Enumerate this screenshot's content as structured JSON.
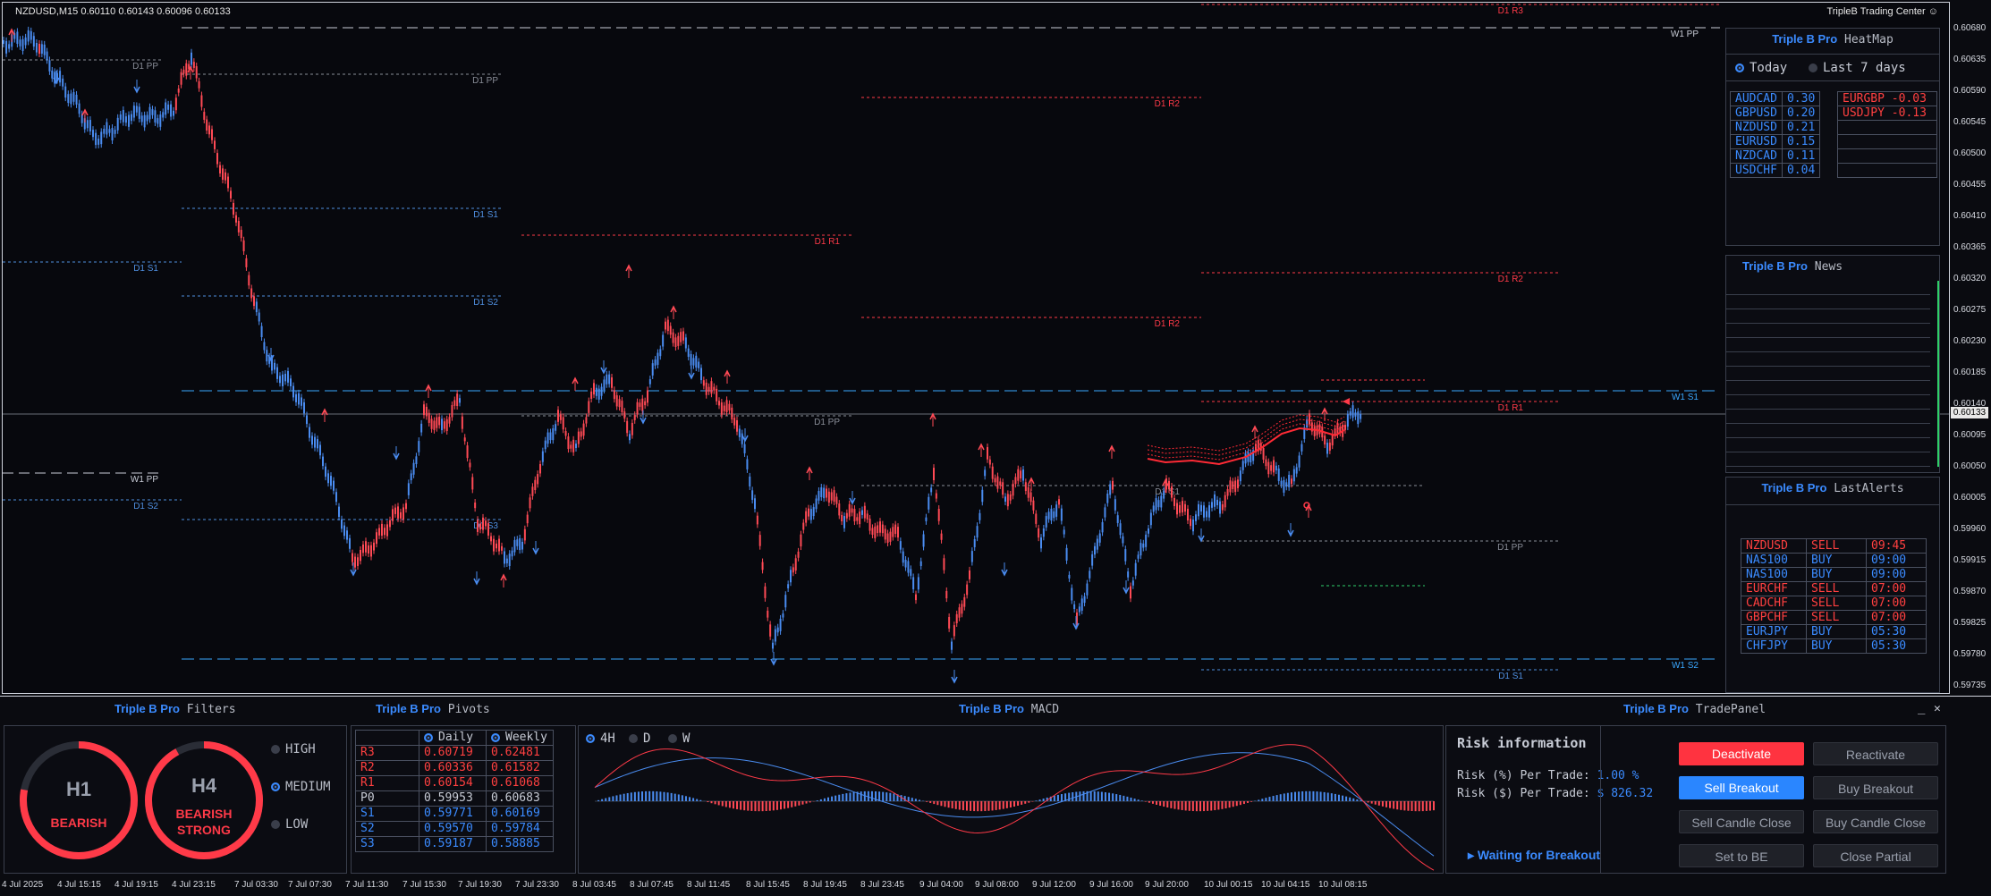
{
  "chart": {
    "symbol_line": "NZDUSD,M15  0.60110 0.60143 0.60096 0.60133",
    "trading_center": "TripleB Trading Center ☺",
    "current_price": "0.60133",
    "price_ticks": [
      "0.60680",
      "0.60635",
      "0.60590",
      "0.60545",
      "0.60500",
      "0.60455",
      "0.60410",
      "0.60365",
      "0.60320",
      "0.60275",
      "0.60230",
      "0.60185",
      "0.60140",
      "0.60095",
      "0.60050",
      "0.60005",
      "0.59960",
      "0.59915",
      "0.59870",
      "0.59825",
      "0.59780",
      "0.59735"
    ],
    "time_ticks": [
      "4 Jul 2025",
      "4 Jul 15:15",
      "4 Jul 19:15",
      "4 Jul 23:15",
      "7 Jul 03:30",
      "7 Jul 07:30",
      "7 Jul 11:30",
      "7 Jul 15:30",
      "7 Jul 19:30",
      "7 Jul 23:30",
      "8 Jul 03:45",
      "8 Jul 07:45",
      "8 Jul 11:45",
      "8 Jul 15:45",
      "8 Jul 19:45",
      "8 Jul 23:45",
      "9 Jul 04:00",
      "9 Jul 08:00",
      "9 Jul 12:00",
      "9 Jul 16:00",
      "9 Jul 20:00",
      "10 Jul 00:15",
      "10 Jul 04:15",
      "10 Jul 08:15"
    ],
    "level_labels": {
      "d1pp_a": "D1 PP",
      "d1pp_b": "D1 PP",
      "d1r3": "D1 R3",
      "w1pp": "W1 PP",
      "d1r2_a": "D1 R2",
      "d1s1_a": "D1 S1",
      "d1s1_b": "D1 S1",
      "d1r1_a": "D1 R1",
      "d1s2_a": "D1 S2",
      "d1r2_b": "D1 R2",
      "d1r1_b": "D1 R2",
      "w1s1": "W1 S1",
      "d1pp_c": "D1 PP",
      "d1r1_c": "D1 R1",
      "w1pp_b": "W1 PP",
      "d1s2_b": "D1 S2",
      "d1s3": "D1 S3",
      "d1pp_d": "D1 PP",
      "w1s2": "W1 S2",
      "d1s1_c": "D1 S1",
      "d1s_mid": "D1 S1"
    }
  },
  "heatmap": {
    "brand": "Triple B Pro",
    "title": "HeatMap",
    "opt_today": "Today",
    "opt_last7": "Last 7 days",
    "left": [
      {
        "pair": "AUDCAD",
        "val": "0.30"
      },
      {
        "pair": "GBPUSD",
        "val": "0.20"
      },
      {
        "pair": "NZDUSD",
        "val": "0.21"
      },
      {
        "pair": "EURUSD",
        "val": "0.15"
      },
      {
        "pair": "NZDCAD",
        "val": "0.11"
      },
      {
        "pair": "USDCHF",
        "val": "0.04"
      }
    ],
    "right": [
      {
        "pair": "EURGBP",
        "val": "-0.03"
      },
      {
        "pair": "USDJPY",
        "val": "-0.13"
      }
    ]
  },
  "news": {
    "brand": "Triple B Pro",
    "title": "News"
  },
  "alerts": {
    "brand": "Triple B Pro",
    "title": "LastAlerts",
    "rows": [
      {
        "pair": "NZDUSD",
        "side": "SELL",
        "time": "09:45"
      },
      {
        "pair": "NAS100",
        "side": "BUY",
        "time": "09:00"
      },
      {
        "pair": "NAS100",
        "side": "BUY",
        "time": "09:00"
      },
      {
        "pair": "EURCHF",
        "side": "SELL",
        "time": "07:00"
      },
      {
        "pair": "CADCHF",
        "side": "SELL",
        "time": "07:00"
      },
      {
        "pair": "GBPCHF",
        "side": "SELL",
        "time": "07:00"
      },
      {
        "pair": "EURJPY",
        "side": "BUY",
        "time": "05:30"
      },
      {
        "pair": "CHFJPY",
        "side": "BUY",
        "time": "05:30"
      }
    ]
  },
  "filters": {
    "brand": "Triple B Pro",
    "title": "Filters",
    "gauge1_tf": "H1",
    "gauge1_state": "BEARISH",
    "gauge2_tf": "H4",
    "gauge2_state1": "BEARISH",
    "gauge2_state2": "STRONG",
    "gauge1_level": 0.78,
    "gauge2_level": 0.92,
    "opt_high": "HIGH",
    "opt_medium": "MEDIUM",
    "opt_low": "LOW"
  },
  "pivots": {
    "brand": "Triple B Pro",
    "title": "Pivots",
    "col_daily": "Daily",
    "col_weekly": "Weekly",
    "rows": [
      {
        "name": "R3",
        "daily": "0.60719",
        "weekly": "0.62481"
      },
      {
        "name": "R2",
        "daily": "0.60336",
        "weekly": "0.61582"
      },
      {
        "name": "R1",
        "daily": "0.60154",
        "weekly": "0.61068"
      },
      {
        "name": "P0",
        "daily": "0.59953",
        "weekly": "0.60683"
      },
      {
        "name": "S1",
        "daily": "0.59771",
        "weekly": "0.60169"
      },
      {
        "name": "S2",
        "daily": "0.59570",
        "weekly": "0.59784"
      },
      {
        "name": "S3",
        "daily": "0.59187",
        "weekly": "0.58885"
      }
    ]
  },
  "macd": {
    "brand": "Triple B Pro",
    "title": "MACD",
    "opt_4h": "4H",
    "opt_d": "D",
    "opt_w": "W"
  },
  "tradepanel": {
    "brand": "Triple B Pro",
    "title": "TradePanel",
    "minimize": "_",
    "close": "✕",
    "risk_title": "Risk information",
    "risk_pct_label": "Risk (%) Per Trade:",
    "risk_pct_value": "1.00 %",
    "risk_usd_label": "Risk ($) Per Trade:",
    "risk_usd_value": "$ 826.32",
    "status": "▸ Waiting for Breakout",
    "btn_deactivate": "Deactivate",
    "btn_reactivate": "Reactivate",
    "btn_sell_breakout": "Sell Breakout",
    "btn_buy_breakout": "Buy Breakout",
    "btn_sell_candle": "Sell Candle Close",
    "btn_buy_candle": "Buy Candle Close",
    "btn_set_be": "Set to BE",
    "btn_close_partial": "Close Partial"
  }
}
